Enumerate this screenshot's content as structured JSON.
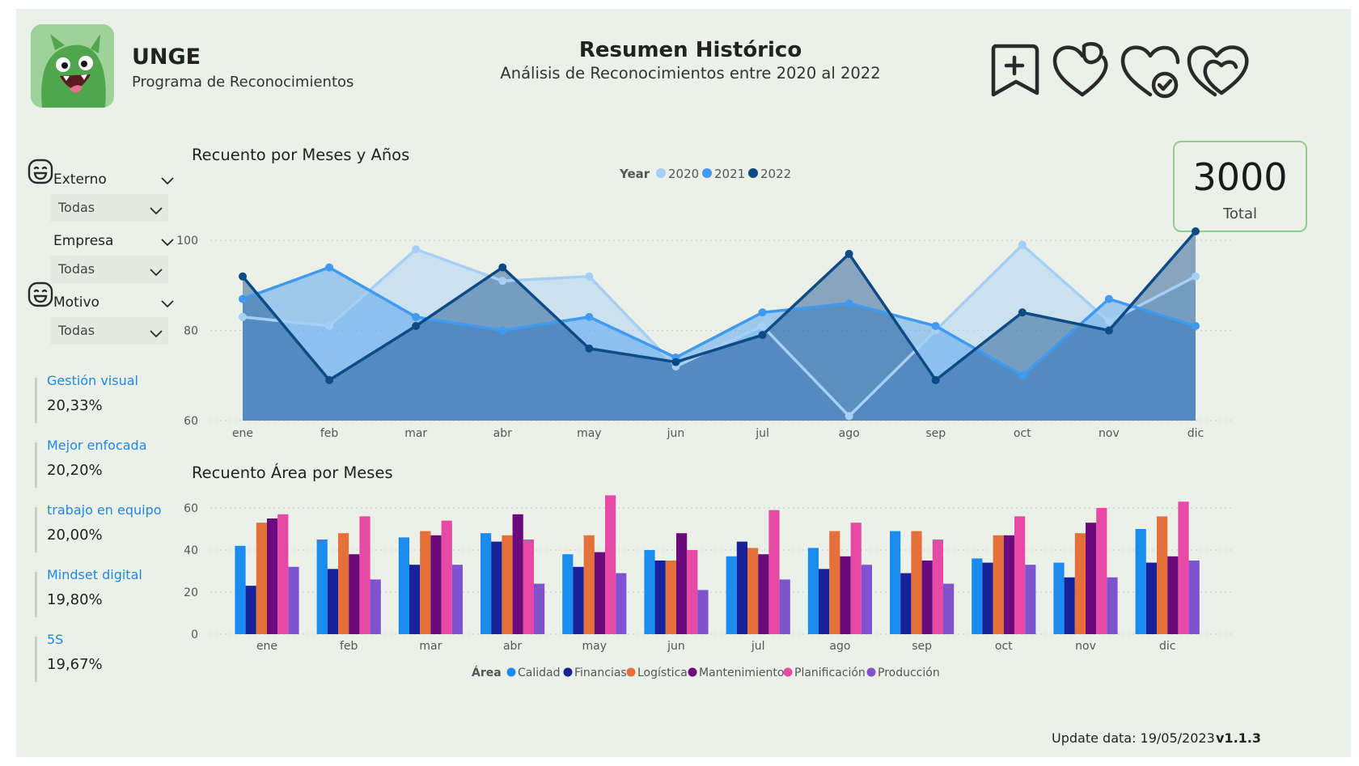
{
  "header": {
    "app_title": "UNGE",
    "app_subtitle": "Programa de Reconocimientos",
    "page_title": "Resumen Histórico",
    "page_subtitle": "Análisis de Reconocimientos entre 2020 al 2022",
    "icons": [
      "bookmark-plus-icon",
      "heart-broken-icon",
      "heart-check-icon",
      "double-heart-icon"
    ]
  },
  "total": {
    "value": "3000",
    "label": "Total"
  },
  "filters": [
    {
      "label": "Externo",
      "value": "Todas",
      "icon": "face-icon"
    },
    {
      "label": "Empresa",
      "value": "Todas"
    },
    {
      "label": "Motivo",
      "value": "Todas",
      "icon": "face-icon"
    }
  ],
  "kpis": [
    {
      "name": "Gestión visual",
      "value": "20,33%"
    },
    {
      "name": "Mejor enfocada",
      "value": "20,20%"
    },
    {
      "name": "trabajo en equipo",
      "value": "20,00%"
    },
    {
      "name": "Mindset digital",
      "value": "19,80%"
    },
    {
      "name": "5S",
      "value": "19,67%"
    }
  ],
  "footer": {
    "update": "Update data: 19/05/2023",
    "version": "v1.1.3"
  },
  "chart_data": [
    {
      "type": "area",
      "title": "Recuento por Meses y Años",
      "legend_title": "Year",
      "legend_position": "top",
      "categories": [
        "ene",
        "feb",
        "mar",
        "abr",
        "may",
        "jun",
        "jul",
        "ago",
        "sep",
        "oct",
        "nov",
        "dic"
      ],
      "ylim": [
        60,
        102
      ],
      "yticks": [
        60,
        80,
        100
      ],
      "grid": true,
      "series": [
        {
          "name": "2020",
          "color": "#a6cff6",
          "values": [
            83,
            81,
            98,
            91,
            92,
            72,
            81,
            61,
            80,
            99,
            82,
            92
          ]
        },
        {
          "name": "2021",
          "color": "#3f9af0",
          "values": [
            87,
            94,
            83,
            80,
            83,
            74,
            84,
            86,
            81,
            70,
            87,
            81
          ]
        },
        {
          "name": "2022",
          "color": "#0e4a85",
          "values": [
            92,
            69,
            81,
            94,
            76,
            73,
            79,
            97,
            69,
            84,
            80,
            102
          ]
        }
      ]
    },
    {
      "type": "bar",
      "title": "Recuento Área por Meses",
      "legend_title": "Área",
      "legend_position": "bottom",
      "categories": [
        "ene",
        "feb",
        "mar",
        "abr",
        "may",
        "jun",
        "jul",
        "ago",
        "sep",
        "oct",
        "nov",
        "dic"
      ],
      "ylim": [
        0,
        65
      ],
      "yticks": [
        0,
        20,
        40,
        60
      ],
      "grid": true,
      "series": [
        {
          "name": "Calidad",
          "color": "#1a8cf0",
          "values": [
            42,
            45,
            46,
            48,
            38,
            40,
            37,
            41,
            49,
            36,
            34,
            50
          ]
        },
        {
          "name": "Financias",
          "color": "#16219a",
          "values": [
            23,
            31,
            33,
            44,
            32,
            35,
            44,
            31,
            29,
            34,
            27,
            34
          ]
        },
        {
          "name": "Logística",
          "color": "#e5703a",
          "values": [
            53,
            48,
            49,
            47,
            47,
            35,
            41,
            49,
            49,
            47,
            48,
            56
          ]
        },
        {
          "name": "Mantenimiento",
          "color": "#6b0a7c",
          "values": [
            55,
            38,
            47,
            57,
            39,
            48,
            38,
            37,
            35,
            47,
            53,
            37
          ]
        },
        {
          "name": "Planificación",
          "color": "#e64aa6",
          "values": [
            57,
            56,
            54,
            45,
            66,
            40,
            59,
            53,
            45,
            56,
            60,
            63
          ]
        },
        {
          "name": "Producción",
          "color": "#7f52cf",
          "values": [
            32,
            26,
            33,
            24,
            29,
            21,
            26,
            33,
            24,
            33,
            27,
            35
          ]
        }
      ]
    }
  ]
}
